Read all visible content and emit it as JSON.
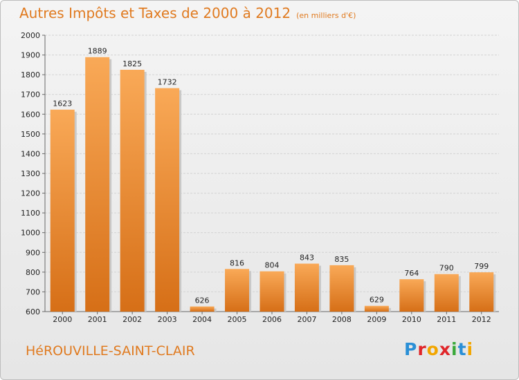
{
  "header": {
    "title": "Autres Impôts et Taxes de 2000 à 2012",
    "unit": "(en milliers d'€)"
  },
  "footer": {
    "commune": "HéROUVILLE-SAINT-CLAIR",
    "logo": "Proxiti"
  },
  "colors": {
    "accent": "#e07a1f",
    "bar_light": "#f7a555",
    "bar_dark": "#d9741a"
  },
  "chart_data": {
    "type": "bar",
    "title": "Autres Impôts et Taxes de 2000 à 2012",
    "subtitle": "(en milliers d'€)",
    "categories": [
      "2000",
      "2001",
      "2002",
      "2003",
      "2004",
      "2005",
      "2006",
      "2007",
      "2008",
      "2009",
      "2010",
      "2011",
      "2012"
    ],
    "values": [
      1623,
      1889,
      1825,
      1732,
      626,
      816,
      804,
      843,
      835,
      629,
      764,
      790,
      799
    ],
    "ylim": [
      600,
      2000
    ],
    "yticks": [
      600,
      700,
      800,
      900,
      1000,
      1100,
      1200,
      1300,
      1400,
      1500,
      1600,
      1700,
      1800,
      1900,
      2000
    ],
    "grid": true,
    "legend": "none"
  }
}
